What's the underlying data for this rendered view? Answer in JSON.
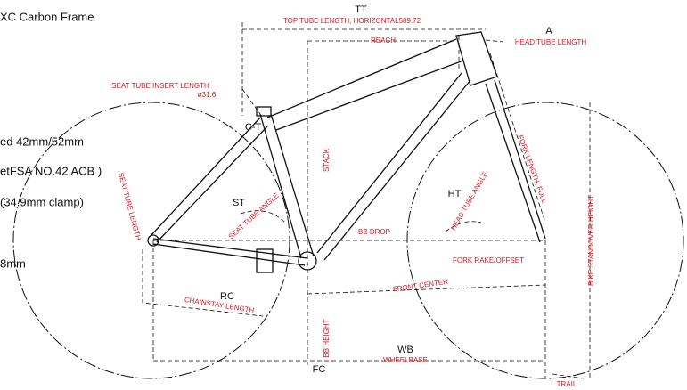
{
  "header": {
    "title": "XC Carbon Frame"
  },
  "specs": [
    "ed 42mm/52mm",
    "etFSA NO.42 ACB )",
    "(34.9mm clamp)",
    "8mm"
  ],
  "labels": {
    "tt": "TT",
    "top_tube_length": "TOP TUBE LENGTH, HORIZONTAL589.72",
    "reach": "REACH",
    "a": "A",
    "head_tube_length": "HEAD TUBE LENGTH",
    "seat_tube_insert_length": "SEAT TUBE INSERT LENGTH",
    "seatpost_diameter": "ø31.6",
    "c_t": "C-T",
    "stack": "STACK",
    "seat_tube_length": "SEAT TUBE LENGTH",
    "st": "ST",
    "seat_tube_angle": "SEAT TUBE ANGLE",
    "ht": "HT",
    "head_tube_angle": "HEAD TUBE ANGLE",
    "fork_length_full": "FORK LENGTH, FULL",
    "bike_standover_height": "BIKE STANDOVER HEIGHT",
    "bb_drop": "BB DROP",
    "fork_rake_offset": "FORK RAKE/OFFSET",
    "front_center": "FRONT CENTER",
    "rc": "RC",
    "chainstay_length": "CHAINSTAY LENGTH",
    "bb_height": "BB HEIGHT",
    "wb": "WB",
    "wheelbase": "WHEELBASE",
    "fc": "FC",
    "trail": "TRAIL"
  }
}
